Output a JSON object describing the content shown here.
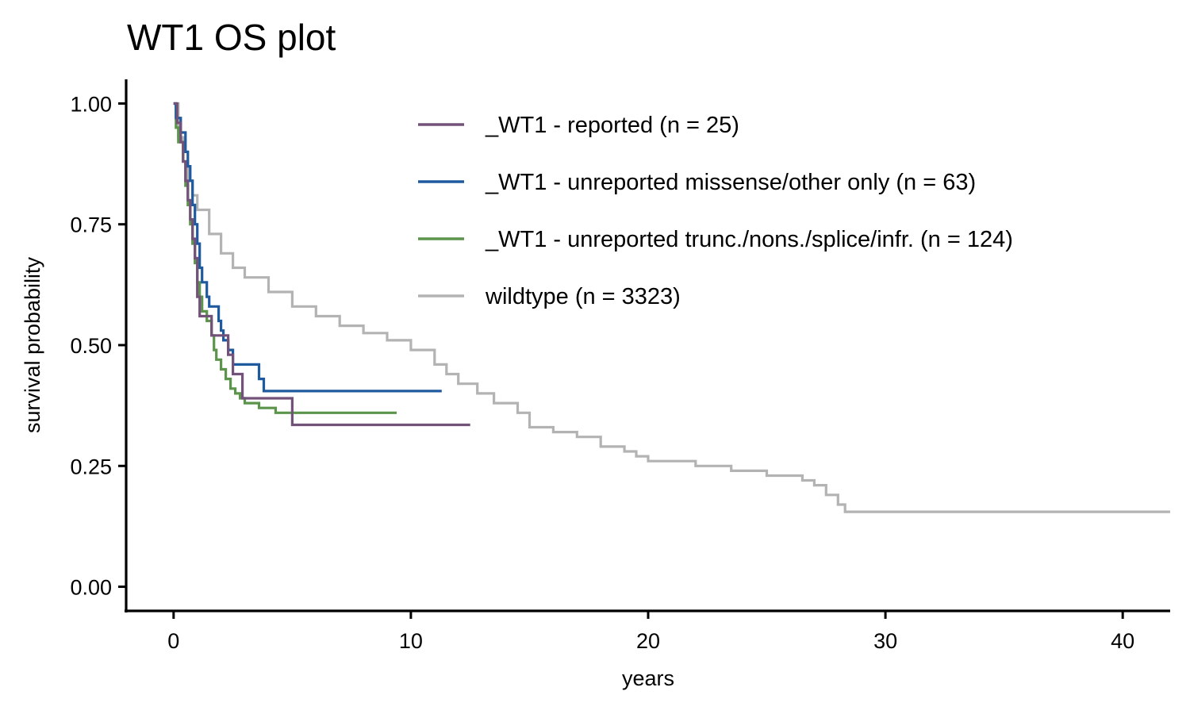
{
  "chart_data": {
    "type": "line",
    "subtype": "kaplan-meier step",
    "title": "WT1 OS plot",
    "xlabel": "years",
    "ylabel": "survival probability",
    "xlim": [
      -2,
      42
    ],
    "ylim": [
      -0.05,
      1.05
    ],
    "xticks": [
      0,
      10,
      20,
      30,
      40
    ],
    "yticks": [
      0.0,
      0.25,
      0.5,
      0.75,
      1.0
    ],
    "xtick_labels": [
      "0",
      "10",
      "20",
      "30",
      "40"
    ],
    "ytick_labels": [
      "0.00",
      "0.25",
      "0.50",
      "0.75",
      "1.00"
    ],
    "grid": false,
    "legend_position": "top-right, inside plot",
    "series": [
      {
        "name": "_WT1 - reported (n = 25)",
        "color": "#735279",
        "points": [
          [
            0,
            1.0
          ],
          [
            0.15,
            0.96
          ],
          [
            0.3,
            0.92
          ],
          [
            0.4,
            0.88
          ],
          [
            0.5,
            0.84
          ],
          [
            0.6,
            0.8
          ],
          [
            0.7,
            0.76
          ],
          [
            0.8,
            0.72
          ],
          [
            0.9,
            0.68
          ],
          [
            1.0,
            0.6
          ],
          [
            1.1,
            0.56
          ],
          [
            1.6,
            0.52
          ],
          [
            2.3,
            0.48
          ],
          [
            2.5,
            0.44
          ],
          [
            2.9,
            0.39
          ],
          [
            5.0,
            0.335
          ],
          [
            12.5,
            0.335
          ]
        ]
      },
      {
        "name": "_WT1 - unreported missense/other only (n = 63)",
        "color": "#1f5a9e",
        "points": [
          [
            0,
            1.0
          ],
          [
            0.1,
            0.97
          ],
          [
            0.3,
            0.94
          ],
          [
            0.5,
            0.9
          ],
          [
            0.6,
            0.87
          ],
          [
            0.7,
            0.84
          ],
          [
            0.8,
            0.79
          ],
          [
            0.9,
            0.75
          ],
          [
            1.0,
            0.71
          ],
          [
            1.1,
            0.66
          ],
          [
            1.2,
            0.63
          ],
          [
            1.4,
            0.6
          ],
          [
            1.5,
            0.58
          ],
          [
            1.9,
            0.55
          ],
          [
            2.0,
            0.53
          ],
          [
            2.1,
            0.51
          ],
          [
            2.3,
            0.49
          ],
          [
            2.5,
            0.46
          ],
          [
            3.6,
            0.43
          ],
          [
            3.8,
            0.405
          ],
          [
            11.3,
            0.405
          ]
        ]
      },
      {
        "name": "_WT1 - unreported trunc./nons./splice/infr. (n = 124)",
        "color": "#5b944a",
        "points": [
          [
            0,
            1.0
          ],
          [
            0.1,
            0.95
          ],
          [
            0.2,
            0.92
          ],
          [
            0.4,
            0.88
          ],
          [
            0.5,
            0.83
          ],
          [
            0.6,
            0.79
          ],
          [
            0.7,
            0.75
          ],
          [
            0.8,
            0.71
          ],
          [
            0.9,
            0.67
          ],
          [
            1.0,
            0.63
          ],
          [
            1.1,
            0.6
          ],
          [
            1.2,
            0.57
          ],
          [
            1.4,
            0.55
          ],
          [
            1.6,
            0.52
          ],
          [
            1.7,
            0.49
          ],
          [
            1.8,
            0.47
          ],
          [
            2.0,
            0.45
          ],
          [
            2.2,
            0.43
          ],
          [
            2.4,
            0.41
          ],
          [
            2.6,
            0.4
          ],
          [
            2.8,
            0.39
          ],
          [
            3.0,
            0.38
          ],
          [
            3.6,
            0.37
          ],
          [
            4.3,
            0.36
          ],
          [
            9.4,
            0.36
          ]
        ]
      },
      {
        "name": "wildtype (n = 3323)",
        "color": "#b3b3b3",
        "points": [
          [
            0,
            1.0
          ],
          [
            0.2,
            0.93
          ],
          [
            0.4,
            0.88
          ],
          [
            0.6,
            0.84
          ],
          [
            0.8,
            0.81
          ],
          [
            1.0,
            0.78
          ],
          [
            1.5,
            0.73
          ],
          [
            2.0,
            0.69
          ],
          [
            2.5,
            0.66
          ],
          [
            3.0,
            0.64
          ],
          [
            4.0,
            0.61
          ],
          [
            5.0,
            0.58
          ],
          [
            6.0,
            0.56
          ],
          [
            7.0,
            0.54
          ],
          [
            8.0,
            0.525
          ],
          [
            9.0,
            0.51
          ],
          [
            10.0,
            0.49
          ],
          [
            11.0,
            0.46
          ],
          [
            11.5,
            0.44
          ],
          [
            12.0,
            0.42
          ],
          [
            12.8,
            0.4
          ],
          [
            13.5,
            0.38
          ],
          [
            14.5,
            0.36
          ],
          [
            15.0,
            0.33
          ],
          [
            16.0,
            0.32
          ],
          [
            17.0,
            0.31
          ],
          [
            18.0,
            0.29
          ],
          [
            19.0,
            0.28
          ],
          [
            19.5,
            0.27
          ],
          [
            20.0,
            0.26
          ],
          [
            22.0,
            0.25
          ],
          [
            23.5,
            0.24
          ],
          [
            25.0,
            0.23
          ],
          [
            26.5,
            0.22
          ],
          [
            27.0,
            0.21
          ],
          [
            27.5,
            0.19
          ],
          [
            28.0,
            0.17
          ],
          [
            28.3,
            0.155
          ],
          [
            42.0,
            0.155
          ]
        ]
      }
    ]
  }
}
